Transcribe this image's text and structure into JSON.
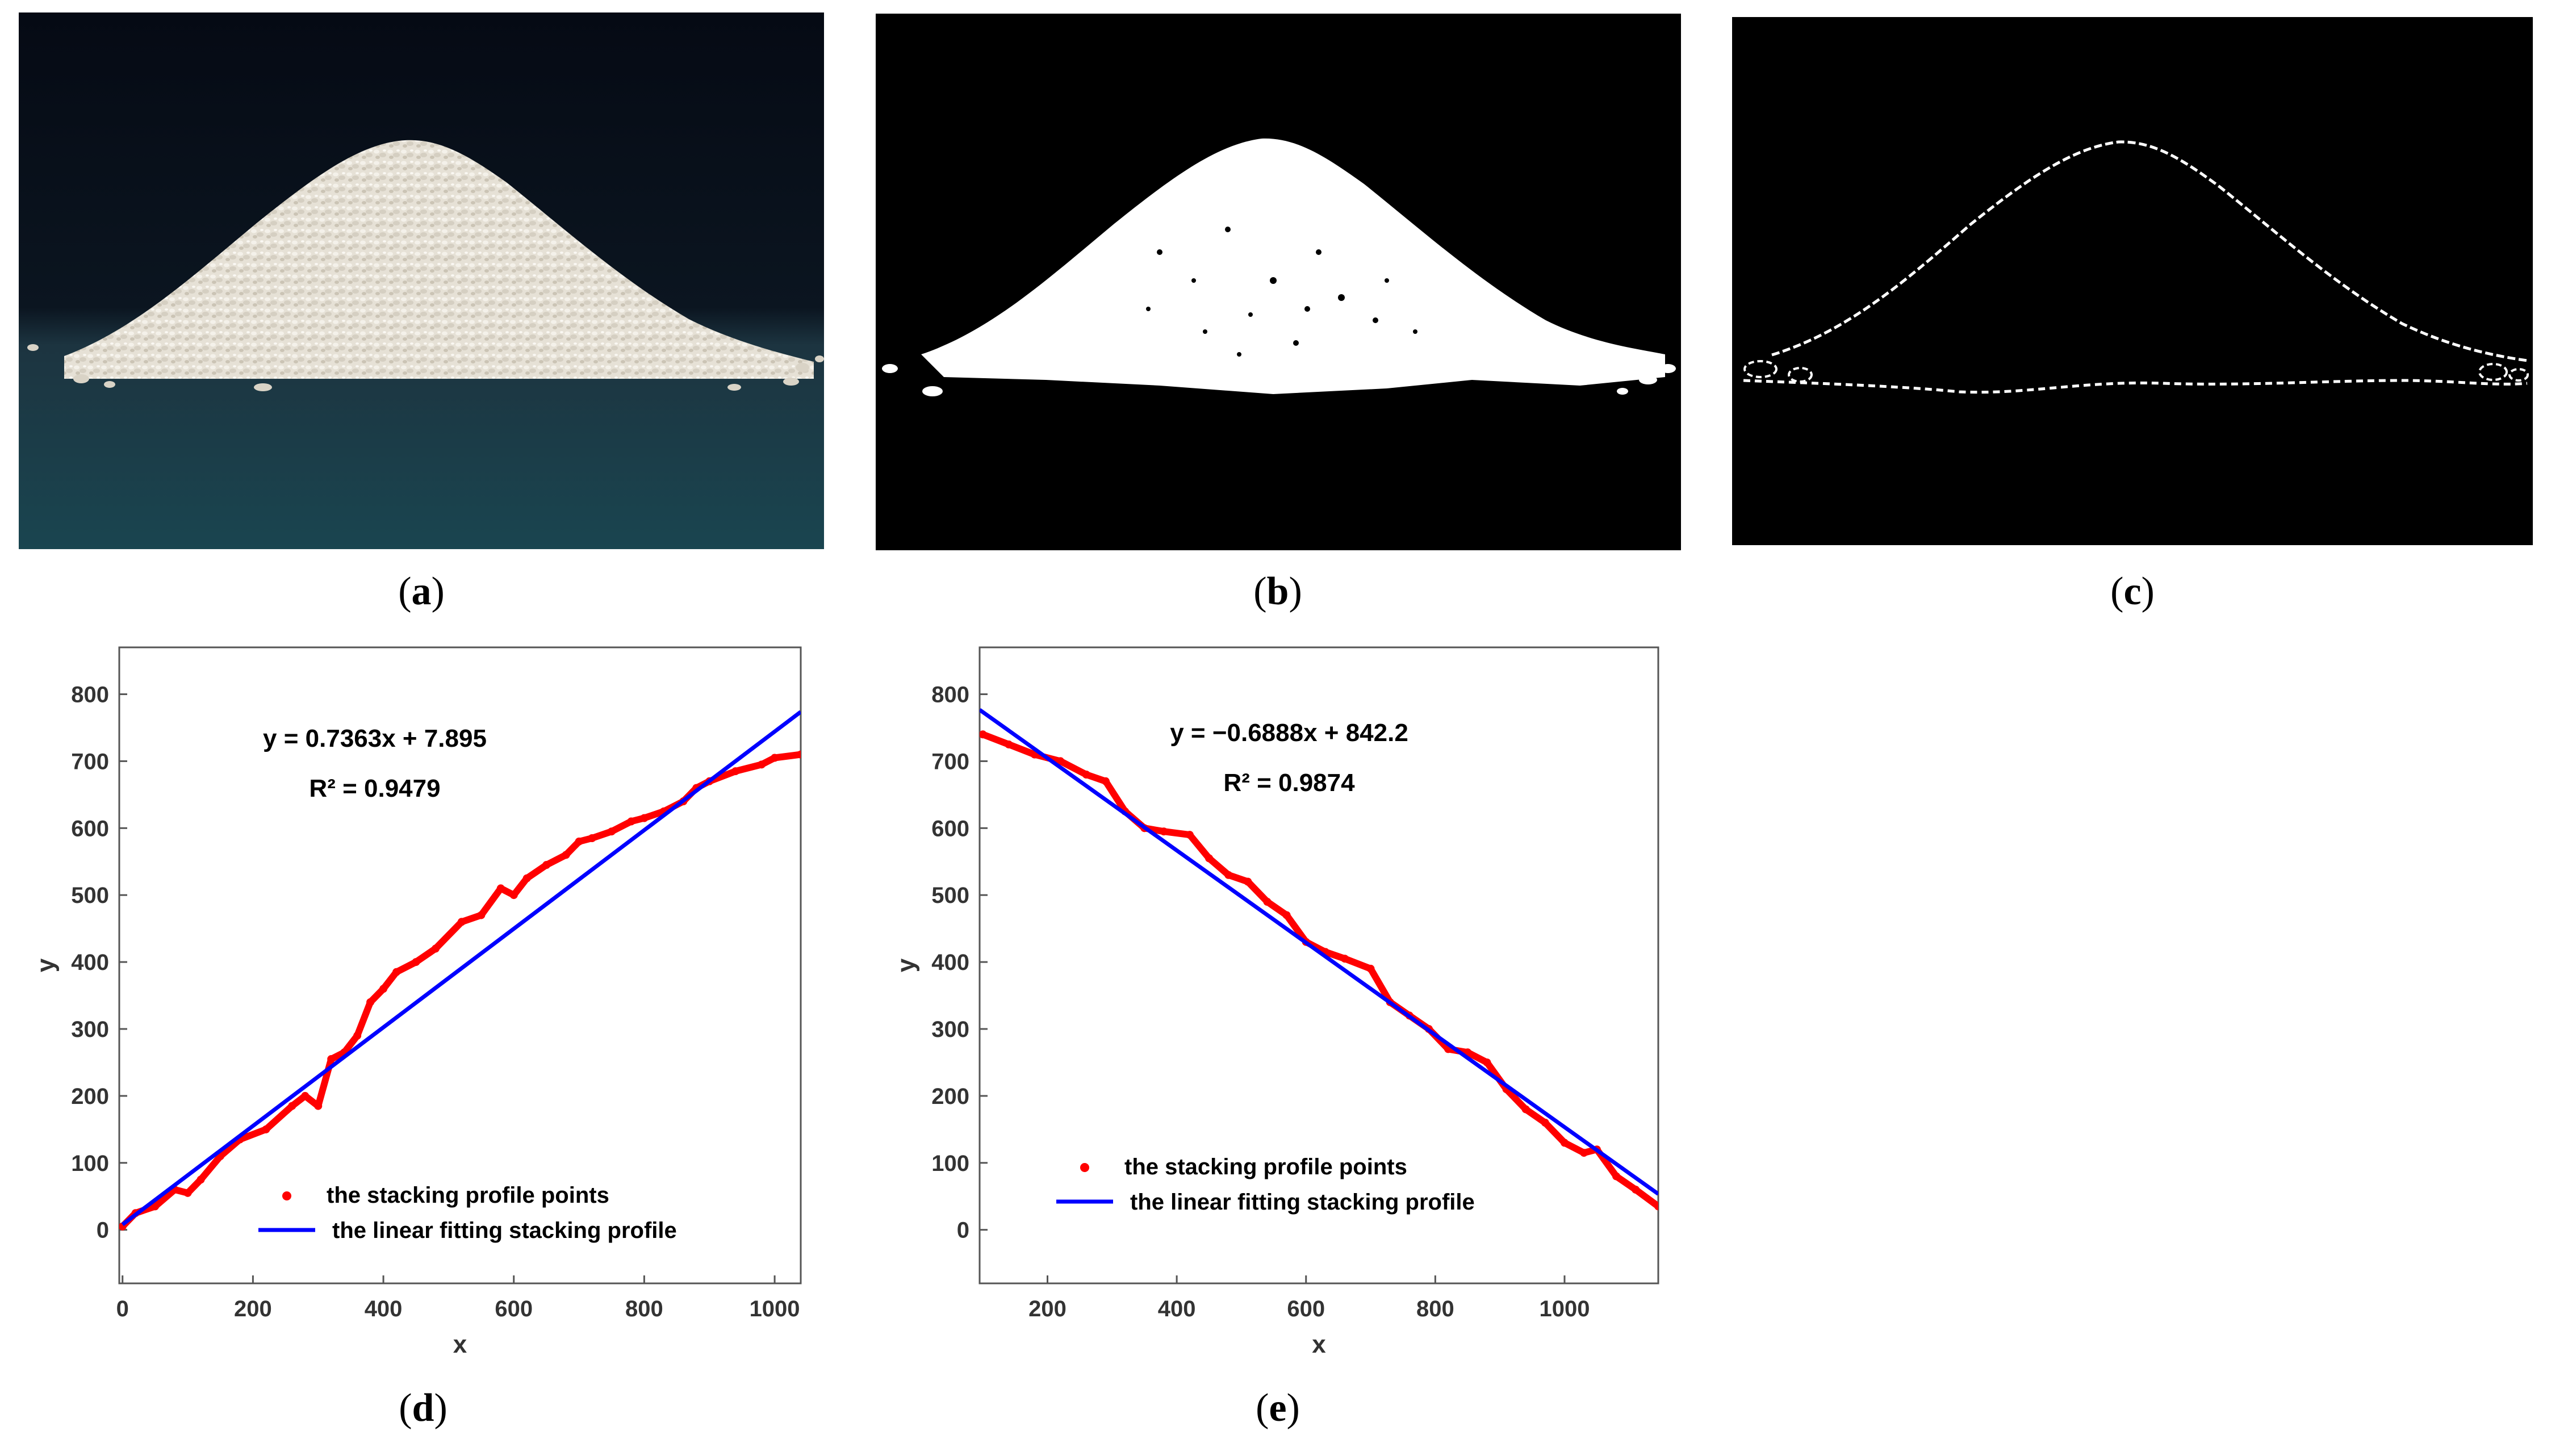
{
  "captions": [
    "a",
    "b",
    "c",
    "d",
    "e"
  ],
  "chart_data": [
    {
      "type": "scatter",
      "panel": "d",
      "xlabel": "x",
      "ylabel": "y",
      "xlim": [
        -5,
        1040
      ],
      "ylim": [
        -80,
        870
      ],
      "xticks": [
        0,
        200,
        400,
        600,
        800,
        1000
      ],
      "yticks": [
        0,
        100,
        200,
        300,
        400,
        500,
        600,
        700,
        800
      ],
      "equation": "y = 0.7363x + 7.895",
      "r2": "R² = 0.9479",
      "legend_position": "bottom-right",
      "series": [
        {
          "name": "the stacking profile points",
          "kind": "points",
          "color": "#ff0000",
          "x": [
            0,
            20,
            50,
            80,
            100,
            120,
            150,
            180,
            220,
            260,
            280,
            300,
            320,
            340,
            360,
            380,
            400,
            420,
            450,
            480,
            520,
            550,
            580,
            600,
            620,
            650,
            680,
            700,
            720,
            750,
            780,
            800,
            830,
            860,
            880,
            900,
            940,
            980,
            1000,
            1040
          ],
          "y": [
            5,
            25,
            35,
            60,
            55,
            75,
            110,
            135,
            150,
            185,
            200,
            185,
            255,
            265,
            290,
            340,
            360,
            385,
            400,
            420,
            460,
            470,
            510,
            500,
            525,
            545,
            560,
            580,
            585,
            595,
            610,
            615,
            625,
            640,
            660,
            670,
            685,
            695,
            705,
            710
          ]
        },
        {
          "name": "the linear fitting stacking profile",
          "kind": "line",
          "color": "#0000ff",
          "slope": 0.7363,
          "intercept": 7.895,
          "x_range": [
            0,
            1040
          ]
        }
      ]
    },
    {
      "type": "scatter",
      "panel": "e",
      "xlabel": "x",
      "ylabel": "y",
      "xlim": [
        95,
        1145
      ],
      "ylim": [
        -80,
        870
      ],
      "xticks": [
        200,
        400,
        600,
        800,
        1000
      ],
      "yticks": [
        0,
        100,
        200,
        300,
        400,
        500,
        600,
        700,
        800
      ],
      "equation": "y = −0.6888x + 842.2",
      "r2": "R² = 0.9874",
      "legend_position": "bottom-left",
      "series": [
        {
          "name": "the stacking profile points",
          "kind": "points",
          "color": "#ff0000",
          "x": [
            100,
            140,
            180,
            220,
            260,
            290,
            320,
            350,
            380,
            420,
            450,
            480,
            510,
            540,
            570,
            600,
            630,
            660,
            700,
            730,
            760,
            790,
            820,
            850,
            880,
            910,
            940,
            970,
            1000,
            1030,
            1050,
            1080,
            1110,
            1145
          ],
          "y": [
            740,
            725,
            710,
            700,
            680,
            670,
            625,
            600,
            595,
            590,
            555,
            530,
            520,
            490,
            470,
            430,
            415,
            405,
            390,
            340,
            320,
            300,
            270,
            265,
            250,
            210,
            180,
            160,
            130,
            115,
            120,
            80,
            60,
            35
          ]
        },
        {
          "name": "the linear fitting stacking profile",
          "kind": "line",
          "color": "#0000ff",
          "slope": -0.6888,
          "intercept": 842.2,
          "x_range": [
            95,
            1145
          ]
        }
      ]
    }
  ]
}
